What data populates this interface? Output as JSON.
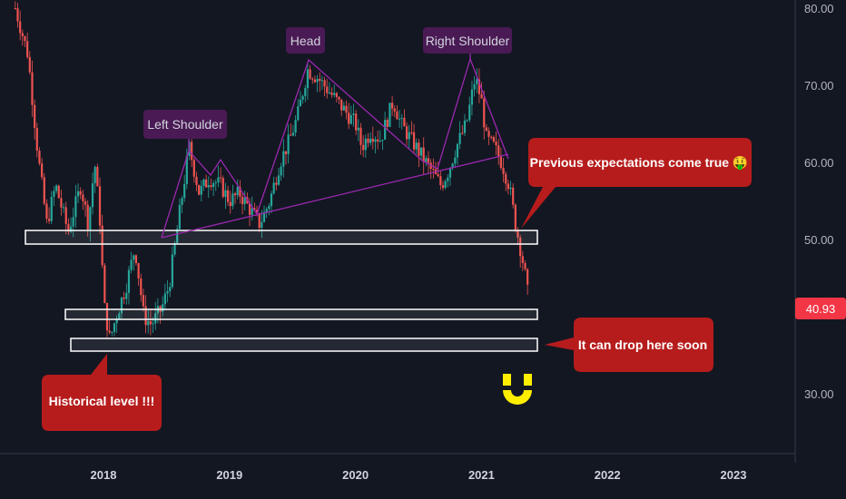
{
  "chart_data": {
    "type": "candlestick",
    "x_ticks": [
      "2018",
      "2019",
      "2020",
      "2021",
      "2022",
      "2023"
    ],
    "y_ticks": [
      "80.00",
      "70.00",
      "60.00",
      "50.00",
      "30.00"
    ],
    "ylim": [
      21,
      82
    ],
    "xlim": [
      2017.2,
      2023.5
    ],
    "last_price": "40.93",
    "price_path": [
      [
        2017.3,
        80
      ],
      [
        2017.4,
        74
      ],
      [
        2017.48,
        61
      ],
      [
        2017.55,
        52
      ],
      [
        2017.62,
        57
      ],
      [
        2017.72,
        51
      ],
      [
        2017.82,
        57
      ],
      [
        2017.88,
        52
      ],
      [
        2017.93,
        60
      ],
      [
        2017.98,
        51
      ],
      [
        2018.0,
        42
      ],
      [
        2018.05,
        37
      ],
      [
        2018.1,
        40
      ],
      [
        2018.18,
        44
      ],
      [
        2018.25,
        49
      ],
      [
        2018.32,
        40
      ],
      [
        2018.38,
        39
      ],
      [
        2018.46,
        41
      ],
      [
        2018.52,
        44
      ],
      [
        2018.6,
        53
      ],
      [
        2018.68,
        62
      ],
      [
        2018.76,
        56
      ],
      [
        2018.84,
        58
      ],
      [
        2018.93,
        57
      ],
      [
        2019.0,
        55
      ],
      [
        2019.08,
        56
      ],
      [
        2019.16,
        54
      ],
      [
        2019.24,
        52
      ],
      [
        2019.32,
        55
      ],
      [
        2019.4,
        60
      ],
      [
        2019.48,
        63
      ],
      [
        2019.54,
        66
      ],
      [
        2019.62,
        72
      ],
      [
        2019.7,
        71
      ],
      [
        2019.8,
        69
      ],
      [
        2019.9,
        67
      ],
      [
        2020.0,
        65
      ],
      [
        2020.05,
        62
      ],
      [
        2020.12,
        64
      ],
      [
        2020.2,
        63
      ],
      [
        2020.3,
        68
      ],
      [
        2020.36,
        65
      ],
      [
        2020.44,
        63
      ],
      [
        2020.52,
        61
      ],
      [
        2020.6,
        59
      ],
      [
        2020.68,
        57
      ],
      [
        2020.74,
        59
      ],
      [
        2020.8,
        62
      ],
      [
        2020.88,
        65
      ],
      [
        2020.95,
        71
      ],
      [
        2021.0,
        68
      ],
      [
        2021.04,
        63
      ],
      [
        2021.1,
        62
      ],
      [
        2021.16,
        60
      ],
      [
        2021.22,
        57
      ],
      [
        2021.27,
        52
      ],
      [
        2021.32,
        48
      ],
      [
        2021.36,
        44
      ],
      [
        2021.38,
        40.93
      ]
    ],
    "annotations": [
      {
        "text": "Left Shoulder",
        "type": "pattern-label"
      },
      {
        "text": "Head",
        "type": "pattern-label"
      },
      {
        "text": "Right Shoulder",
        "type": "pattern-label"
      },
      {
        "text": "Previous expectations come true 🤑",
        "type": "callout"
      },
      {
        "text": "It can drop here soon",
        "type": "callout"
      },
      {
        "text": "Historical level !!!",
        "type": "callout"
      }
    ],
    "support_zones": [
      [
        49.5,
        51
      ],
      [
        39.5,
        40.5
      ],
      [
        36,
        37.5
      ]
    ],
    "colors": {
      "background": "#131722",
      "up": "#26a69a",
      "down": "#ef5350",
      "pattern": "#9c27b0",
      "callout": "#b71c1c",
      "label": "#4a1a55",
      "price_tag": "#f23645",
      "logo": "#ffee00"
    },
    "grid": false
  },
  "annotations": {
    "left_shoulder": "Left Shoulder",
    "head": "Head",
    "right_shoulder": "Right Shoulder",
    "previous": "Previous expectations come true 🤑",
    "drop": "It can drop here soon",
    "historical": "Historical level !!!"
  }
}
